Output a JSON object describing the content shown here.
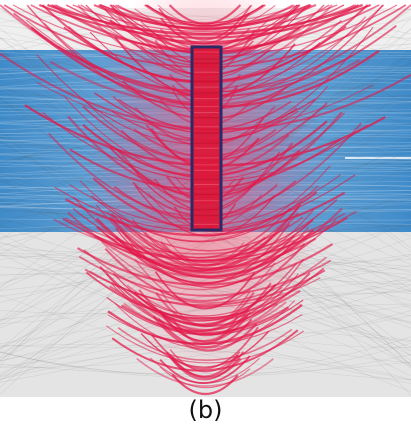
{
  "figure": {
    "caption": "(b)",
    "colors": {
      "background": "#ffffff",
      "grey_band": "#efefef",
      "grey_curve": "#555555",
      "blue_band": "#4f97d1",
      "red_curve": "#e3184a",
      "red_core": "#dc1536",
      "highlight_box": "#2c2a66"
    }
  }
}
